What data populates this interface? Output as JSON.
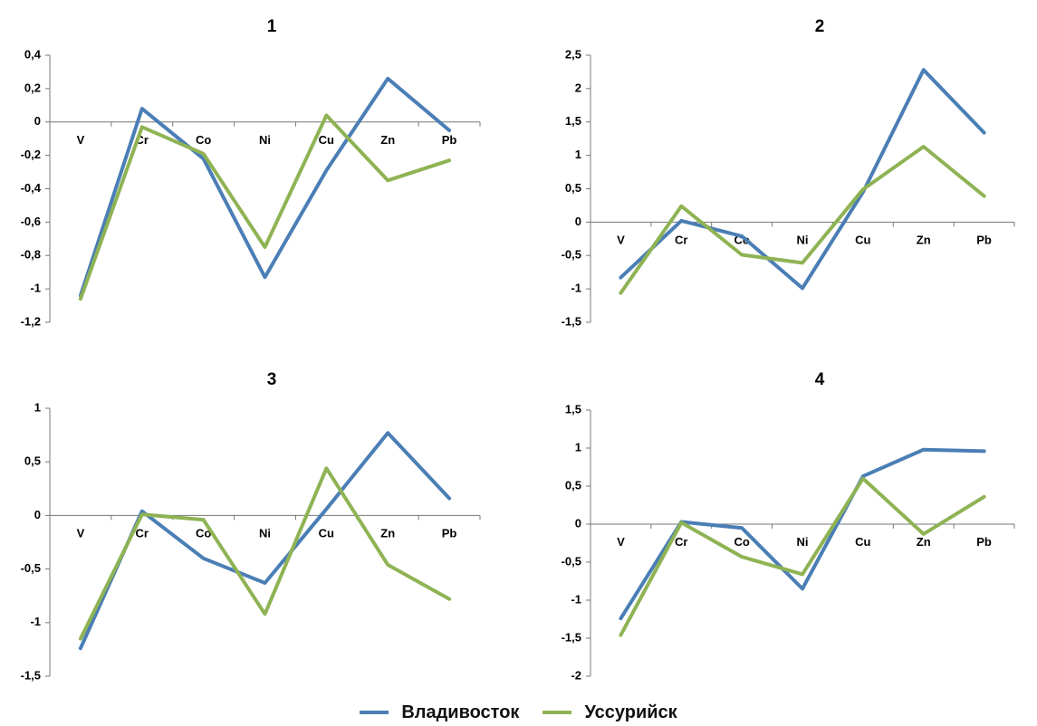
{
  "legend": {
    "series": [
      {
        "name": "Владивосток",
        "color": "#4a7eb5"
      },
      {
        "name": "Уссурийск",
        "color": "#8fb354"
      }
    ]
  },
  "chart_data": [
    {
      "type": "line",
      "title": "1",
      "categories": [
        "V",
        "Cr",
        "Co",
        "Ni",
        "Cu",
        "Zn",
        "Pb"
      ],
      "ylim": [
        -1.2,
        0.4
      ],
      "yticks": [
        0.4,
        0.2,
        0,
        -0.2,
        -0.4,
        -0.6,
        -0.8,
        -1,
        -1.2
      ],
      "ytick_labels": [
        "0,4",
        "0,2",
        "0",
        "-0,2",
        "-0,4",
        "-0,6",
        "-0,8",
        "-1",
        "-1,2"
      ],
      "series": [
        {
          "name": "Владивосток",
          "values": [
            -1.04,
            0.08,
            -0.22,
            -0.93,
            -0.29,
            0.26,
            -0.05
          ]
        },
        {
          "name": "Уссурийск",
          "values": [
            -1.06,
            -0.03,
            -0.19,
            -0.75,
            0.04,
            -0.35,
            -0.23
          ]
        }
      ]
    },
    {
      "type": "line",
      "title": "2",
      "categories": [
        "V",
        "Cr",
        "Co",
        "Ni",
        "Cu",
        "Zn",
        "Pb"
      ],
      "ylim": [
        -1.5,
        2.5
      ],
      "yticks": [
        2.5,
        2,
        1.5,
        1,
        0.5,
        0,
        -0.5,
        -1,
        -1.5
      ],
      "ytick_labels": [
        "2,5",
        "2",
        "1,5",
        "1",
        "0,5",
        "0",
        "-0,5",
        "-1",
        "-1,5"
      ],
      "series": [
        {
          "name": "Владивосток",
          "values": [
            -0.83,
            0.02,
            -0.21,
            -0.99,
            0.45,
            2.28,
            1.34
          ]
        },
        {
          "name": "Уссурийск",
          "values": [
            -1.06,
            0.24,
            -0.49,
            -0.61,
            0.49,
            1.13,
            0.39
          ]
        }
      ]
    },
    {
      "type": "line",
      "title": "3",
      "categories": [
        "V",
        "Cr",
        "Co",
        "Ni",
        "Cu",
        "Zn",
        "Pb"
      ],
      "ylim": [
        -1.5,
        1
      ],
      "yticks": [
        1,
        0.5,
        0,
        -0.5,
        -1,
        -1.5
      ],
      "ytick_labels": [
        "1",
        "0,5",
        "0",
        "-0,5",
        "-1",
        "-1,5"
      ],
      "series": [
        {
          "name": "Владивосток",
          "values": [
            -1.24,
            0.04,
            -0.4,
            -0.63,
            0.06,
            0.77,
            0.16
          ]
        },
        {
          "name": "Уссурийск",
          "values": [
            -1.15,
            0.01,
            -0.04,
            -0.92,
            0.44,
            -0.46,
            -0.78
          ]
        }
      ]
    },
    {
      "type": "line",
      "title": "4",
      "categories": [
        "V",
        "Cr",
        "Co",
        "Ni",
        "Cu",
        "Zn",
        "Pb"
      ],
      "ylim": [
        -2,
        1.5
      ],
      "yticks": [
        1.5,
        1,
        0.5,
        0,
        -0.5,
        -1,
        -1.5,
        -2
      ],
      "ytick_labels": [
        "1,5",
        "1",
        "0,5",
        "0",
        "-0,5",
        "-1",
        "-1,5",
        "-2"
      ],
      "series": [
        {
          "name": "Владивосток",
          "values": [
            -1.24,
            0.03,
            -0.05,
            -0.85,
            0.63,
            0.98,
            0.96
          ]
        },
        {
          "name": "Уссурийск",
          "values": [
            -1.46,
            0.02,
            -0.43,
            -0.66,
            0.6,
            -0.13,
            0.36
          ]
        }
      ]
    }
  ]
}
